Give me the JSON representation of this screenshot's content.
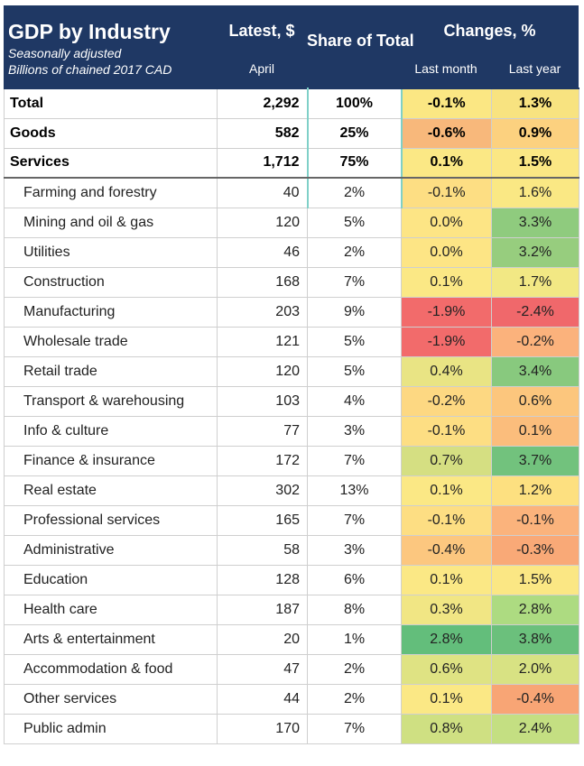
{
  "title": "GDP by Industry",
  "subtitle1": "Seasonally adjusted",
  "subtitle2": "Billions of chained 2017 CAD",
  "headers": {
    "latest": "Latest, $",
    "latest_sub": "April",
    "share": "Share of Total",
    "changes": "Changes, %",
    "last_month": "Last month",
    "last_year": "Last year"
  },
  "chart_data": {
    "type": "table",
    "title": "GDP by Industry",
    "columns": [
      "Latest, $ (April)",
      "Share of Total",
      "Changes, % Last month",
      "Changes, % Last year"
    ],
    "color_scale": {
      "low": "#e8696b",
      "mid": "#fbe784",
      "high": "#63be7b"
    },
    "rows": [
      {
        "name": "Total",
        "latest": "2,292",
        "share": "100%",
        "lm": "-0.1%",
        "ly": "1.3%",
        "lm_color": "#fbe783",
        "ly_color": "#f8e380"
      },
      {
        "name": "Goods",
        "latest": "582",
        "share": "25%",
        "lm": "-0.6%",
        "ly": "0.9%",
        "lm_color": "#f8b87b",
        "ly_color": "#fcd17f"
      },
      {
        "name": "Services",
        "latest": "1,712",
        "share": "75%",
        "lm": "0.1%",
        "ly": "1.5%",
        "lm_color": "#fbe885",
        "ly_color": "#fbe784"
      },
      {
        "name": "Farming and forestry",
        "latest": "40",
        "share": "2%",
        "lm": "-0.1%",
        "ly": "1.6%",
        "lm_color": "#fdde83",
        "ly_color": "#fae884"
      },
      {
        "name": "Mining and oil & gas",
        "latest": "120",
        "share": "5%",
        "lm": "0.0%",
        "ly": "3.3%",
        "lm_color": "#fde585",
        "ly_color": "#8fcb7e"
      },
      {
        "name": "Utilities",
        "latest": "46",
        "share": "2%",
        "lm": "0.0%",
        "ly": "3.2%",
        "lm_color": "#fde585",
        "ly_color": "#97cd7e"
      },
      {
        "name": "Construction",
        "latest": "168",
        "share": "7%",
        "lm": "0.1%",
        "ly": "1.7%",
        "lm_color": "#fbe885",
        "ly_color": "#f2e884"
      },
      {
        "name": "Manufacturing",
        "latest": "203",
        "share": "9%",
        "lm": "-1.9%",
        "ly": "-2.4%",
        "lm_color": "#f26b6b",
        "ly_color": "#f0686b"
      },
      {
        "name": "Wholesale trade",
        "latest": "121",
        "share": "5%",
        "lm": "-1.9%",
        "ly": "-0.2%",
        "lm_color": "#f26b6b",
        "ly_color": "#fbb27c"
      },
      {
        "name": "Retail trade",
        "latest": "120",
        "share": "5%",
        "lm": "0.4%",
        "ly": "3.4%",
        "lm_color": "#e9e484",
        "ly_color": "#88c97e"
      },
      {
        "name": "Transport & warehousing",
        "latest": "103",
        "share": "4%",
        "lm": "-0.2%",
        "ly": "0.6%",
        "lm_color": "#fdd882",
        "ly_color": "#fcc67d"
      },
      {
        "name": "Info & culture",
        "latest": "77",
        "share": "3%",
        "lm": "-0.1%",
        "ly": "0.1%",
        "lm_color": "#fdde83",
        "ly_color": "#fbbd7c"
      },
      {
        "name": "Finance & insurance",
        "latest": "172",
        "share": "7%",
        "lm": "0.7%",
        "ly": "3.7%",
        "lm_color": "#d5df82",
        "ly_color": "#72c27d"
      },
      {
        "name": "Real estate",
        "latest": "302",
        "share": "13%",
        "lm": "0.1%",
        "ly": "1.2%",
        "lm_color": "#fbe885",
        "ly_color": "#fde080"
      },
      {
        "name": "Professional services",
        "latest": "165",
        "share": "7%",
        "lm": "-0.1%",
        "ly": "-0.1%",
        "lm_color": "#fdde83",
        "ly_color": "#fbb37c"
      },
      {
        "name": "Administrative",
        "latest": "58",
        "share": "3%",
        "lm": "-0.4%",
        "ly": "-0.3%",
        "lm_color": "#fcc77f",
        "ly_color": "#f9a977"
      },
      {
        "name": "Education",
        "latest": "128",
        "share": "6%",
        "lm": "0.1%",
        "ly": "1.5%",
        "lm_color": "#fbe885",
        "ly_color": "#fbe784"
      },
      {
        "name": "Health care",
        "latest": "187",
        "share": "8%",
        "lm": "0.3%",
        "ly": "2.8%",
        "lm_color": "#f1e684",
        "ly_color": "#addb81"
      },
      {
        "name": "Arts & entertainment",
        "latest": "20",
        "share": "1%",
        "lm": "2.8%",
        "ly": "3.8%",
        "lm_color": "#63be7b",
        "ly_color": "#6bc07c"
      },
      {
        "name": "Accommodation & food",
        "latest": "47",
        "share": "2%",
        "lm": "0.6%",
        "ly": "2.0%",
        "lm_color": "#dfe383",
        "ly_color": "#d8e283"
      },
      {
        "name": "Other services",
        "latest": "44",
        "share": "2%",
        "lm": "0.1%",
        "ly": "-0.4%",
        "lm_color": "#fbe885",
        "ly_color": "#f8a575"
      },
      {
        "name": "Public admin",
        "latest": "170",
        "share": "7%",
        "lm": "0.8%",
        "ly": "2.4%",
        "lm_color": "#cfe082",
        "ly_color": "#c4df82"
      }
    ]
  }
}
